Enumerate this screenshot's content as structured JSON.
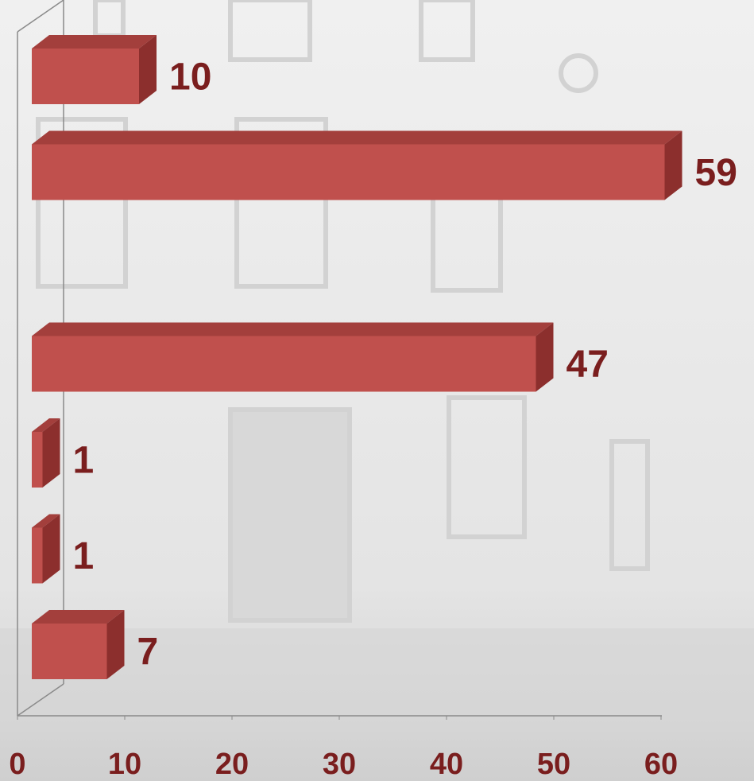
{
  "chart_data": {
    "type": "bar3d",
    "orientation": "horizontal",
    "categories": [
      null,
      null,
      null,
      null,
      null,
      null,
      null
    ],
    "values": [
      10,
      59,
      null,
      47,
      1,
      1,
      7
    ],
    "color": "#c0504d",
    "xlim": [
      0,
      60
    ],
    "xticks": [
      0,
      10,
      20,
      30,
      40,
      50,
      60
    ]
  }
}
